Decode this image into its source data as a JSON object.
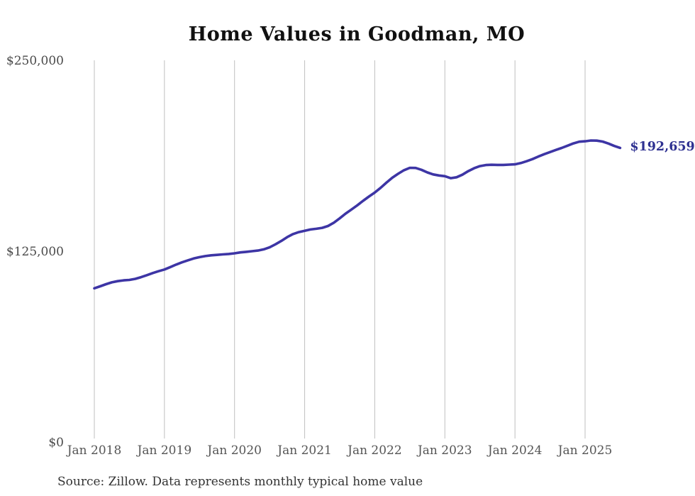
{
  "title": "Home Values in Goodman, MO",
  "source_note": "Source: Zillow. Data represents monthly typical home value",
  "end_label": "$192,659",
  "colors": {
    "background": "#ffffff",
    "line": "#3d35a5",
    "end_label": "#2e3191",
    "grid": "#bfbfbf",
    "x_tick_text": "#555555",
    "y_tick_text": "#4a4a4a",
    "title_text": "#111111",
    "source_text": "#333333"
  },
  "chart_data": {
    "type": "line",
    "title": "Home Values in Goodman, MO",
    "xlabel": "",
    "ylabel": "",
    "ylim": [
      0,
      250000
    ],
    "y_tick_values": [
      0,
      125000,
      250000
    ],
    "y_tick_labels": [
      "$0",
      "$125,000",
      "$250,000"
    ],
    "x_tick_labels": [
      "Jan 2018",
      "Jan 2019",
      "Jan 2020",
      "Jan 2021",
      "Jan 2022",
      "Jan 2023",
      "Jan 2024",
      "Jan 2025"
    ],
    "grid": "vertical-only",
    "legend": "none",
    "annotation_final_value": 192659,
    "series": [
      {
        "name": "Monthly typical home value",
        "start_month": "Jan 2018",
        "end_month": "Jul 2025",
        "interval": "monthly",
        "values": [
          100700,
          102000,
          103400,
          104600,
          105400,
          105900,
          106200,
          106900,
          108000,
          109300,
          110700,
          111900,
          113000,
          114600,
          116200,
          117700,
          119000,
          120200,
          121100,
          121800,
          122300,
          122600,
          122900,
          123200,
          123600,
          124200,
          124600,
          125000,
          125400,
          126200,
          127500,
          129500,
          131700,
          134200,
          136200,
          137500,
          138400,
          139200,
          139700,
          140300,
          141500,
          143700,
          146500,
          149600,
          152300,
          155000,
          158000,
          160800,
          163400,
          166500,
          169900,
          173100,
          175700,
          178000,
          179600,
          179500,
          178300,
          176600,
          175300,
          174600,
          174100,
          172800,
          173400,
          175100,
          177400,
          179300,
          180700,
          181400,
          181600,
          181500,
          181500,
          181700,
          181900,
          182700,
          183900,
          185300,
          187000,
          188500,
          189900,
          191300,
          192600,
          194100,
          195600,
          196700,
          197000,
          197500,
          197400,
          196800,
          195500,
          193900,
          192659
        ]
      }
    ]
  }
}
